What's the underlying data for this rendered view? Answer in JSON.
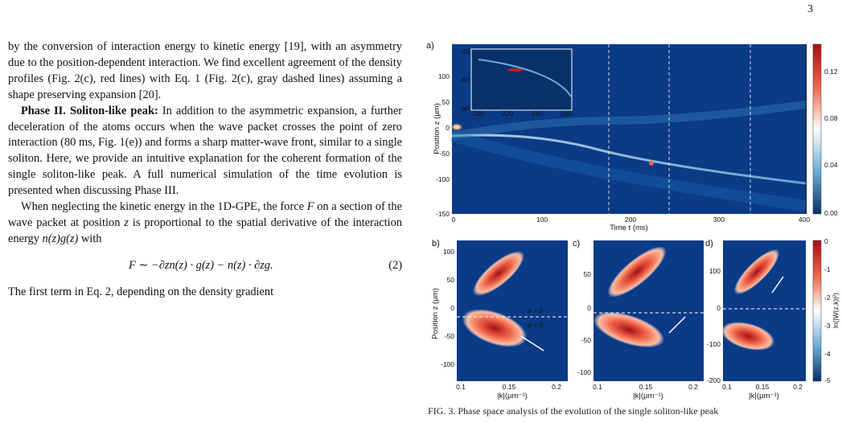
{
  "page_number": "3",
  "text": {
    "p1": "by the conversion of interaction energy to kinetic energy [19], with an asymmetry due to the position-dependent interaction. We find excellent agreement of the density profiles (Fig. 2(c), red lines) with Eq. 1 (Fig. 2(c), gray dashed lines) assuming a shape preserving expansion [20].",
    "p2_head": "Phase II. Soliton-like peak:",
    "p2_body": " In addition to the asymmetric expansion, a further deceleration of the atoms occurs when the wave packet crosses the point of zero interaction (80 ms, Fig. 1(e)) and forms a sharp matter-wave front, similar to a single soliton. Here, we provide an intuitive explanation for the coherent formation of the single soliton-like peak. A full numerical simulation of the time evolution is presented when discussing Phase III.",
    "p3_a": "When neglecting the kinetic energy in the 1D-GPE, the force ",
    "p3_F": "F",
    "p3_b": " on a section of the wave packet at position ",
    "p3_z": "z",
    "p3_c": " is proportional to the spatial derivative of the interaction energy ",
    "p3_ng": "n(z)g(z)",
    "p3_d": " with",
    "eq": "F ∼ −∂zn(z) · g(z) − n(z) · ∂zg.",
    "eq_num": "(2)",
    "p4": "The first term in Eq. 2, depending on the density gradient"
  },
  "figure": {
    "panel_a": {
      "label": "a)",
      "ylabel": "Position z (µm)",
      "xlabel": "Time t (ms)",
      "yticks": [
        "100",
        "50",
        "0",
        "-50",
        "-100",
        "-150"
      ],
      "xticks": [
        "0",
        "100",
        "200",
        "300",
        "400"
      ],
      "inset_yticks": [
        "-40",
        "-60",
        "-80"
      ],
      "inset_xticks": [
        "200",
        "220",
        "240",
        "260"
      ],
      "colorbar_ticks": [
        "0.12",
        "0.08",
        "0.04",
        "0.00"
      ]
    },
    "panel_b": {
      "label": "b)",
      "yticks": [
        "100",
        "50",
        "0",
        "-50",
        "-100"
      ],
      "xticks": [
        "0.1",
        "0.15",
        "0.2"
      ],
      "xlabel": "|k|(µm⁻¹)",
      "ylabel": "Position z (µm)",
      "ann_pos": "a > 0",
      "ann_neg": "a < 0"
    },
    "panel_c": {
      "label": "c)",
      "yticks": [
        "50",
        "0",
        "-50",
        "-100"
      ],
      "xticks": [
        "0.1",
        "0.15",
        "0.2"
      ],
      "xlabel": "|k|(µm⁻¹)"
    },
    "panel_d": {
      "label": "d)",
      "yticks": [
        "100",
        "0",
        "-100",
        "-200"
      ],
      "xticks": [
        "0.1",
        "0.15",
        "0.2"
      ],
      "xlabel": "|k|(µm⁻¹)",
      "colorbar_ticks": [
        "0",
        "-1",
        "-2",
        "-3",
        "-4",
        "-5"
      ],
      "colorbar_label": "ln(|W(z,k)|²)"
    },
    "caption_fragment": "FIG. 3. Phase space analysis of the evolution of the single soliton-like peak"
  },
  "colors": {
    "background": "#0b3a86",
    "dark": "#08306b",
    "red": "#c81d25",
    "white": "#ffffff"
  }
}
